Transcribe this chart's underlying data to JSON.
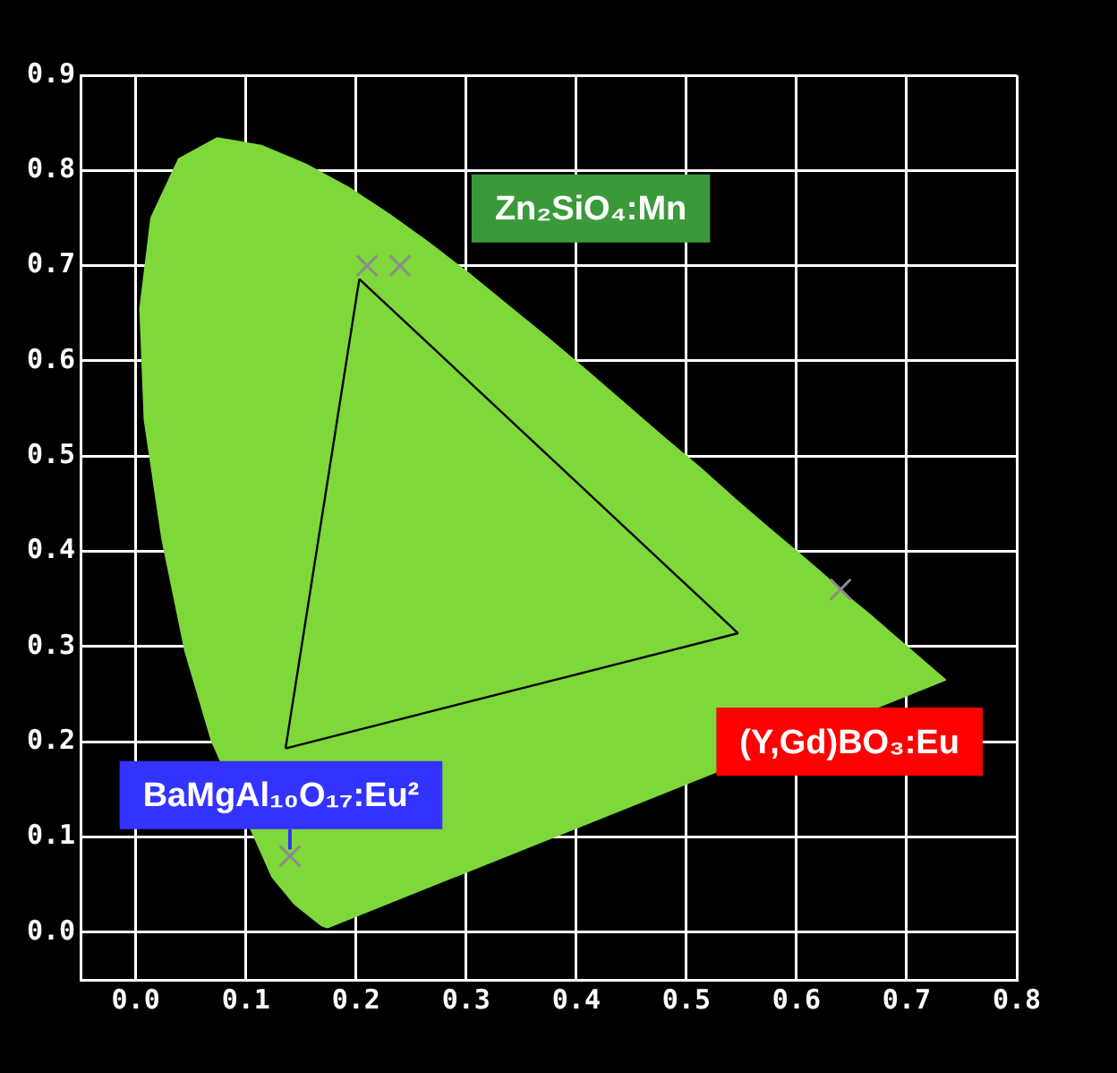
{
  "chart_data": {
    "type": "line",
    "xlim": [
      -0.05,
      0.8
    ],
    "ylim": [
      -0.05,
      0.9
    ],
    "xticks": [
      {
        "value": 0,
        "label": "0.0"
      },
      {
        "value": 0.1,
        "label": "0.1"
      },
      {
        "value": 0.2,
        "label": "0.2"
      },
      {
        "value": 0.3,
        "label": "0.3"
      },
      {
        "value": 0.4,
        "label": "0.4"
      },
      {
        "value": 0.5,
        "label": "0.5"
      },
      {
        "value": 0.6,
        "label": "0.6"
      },
      {
        "value": 0.7,
        "label": "0.7"
      },
      {
        "value": 0.8,
        "label": "0.8"
      }
    ],
    "yticks": [
      {
        "value": 0,
        "label": "0.0"
      },
      {
        "value": 0.1,
        "label": "0.1"
      },
      {
        "value": 0.2,
        "label": "0.2"
      },
      {
        "value": 0.3,
        "label": "0.3"
      },
      {
        "value": 0.4,
        "label": "0.4"
      },
      {
        "value": 0.5,
        "label": "0.5"
      },
      {
        "value": 0.6,
        "label": "0.6"
      },
      {
        "value": 0.7,
        "label": "0.7"
      },
      {
        "value": 0.8,
        "label": "0.8"
      },
      {
        "value": 0.9,
        "label": "0.9"
      }
    ],
    "grid": true,
    "legend": false,
    "series": [
      {
        "type": "area",
        "color": "#7fd83a",
        "x": [
          0.174,
          0.169,
          0.157,
          0.144,
          0.124,
          0.069,
          0.045,
          0.024,
          0.008,
          0.004,
          0.014,
          0.039,
          0.074,
          0.114,
          0.155,
          0.193,
          0.23,
          0.266,
          0.302,
          0.337,
          0.373,
          0.409,
          0.444,
          0.479,
          0.513,
          0.545,
          0.575,
          0.603,
          0.627,
          0.648,
          0.666,
          0.692,
          0.735,
          0.174
        ],
        "values": [
          0.005,
          0.007,
          0.018,
          0.03,
          0.058,
          0.201,
          0.295,
          0.413,
          0.538,
          0.655,
          0.75,
          0.812,
          0.834,
          0.826,
          0.806,
          0.782,
          0.754,
          0.724,
          0.692,
          0.659,
          0.625,
          0.59,
          0.555,
          0.52,
          0.487,
          0.454,
          0.424,
          0.397,
          0.373,
          0.351,
          0.334,
          0.308,
          0.265,
          0.005
        ]
      },
      {
        "color": "#000000",
        "x": [
          0.203,
          0.547
        ],
        "values": [
          0.686,
          0.314
        ]
      },
      {
        "color": "#000000",
        "x": [
          0.136,
          0.547
        ],
        "values": [
          0.193,
          0.314
        ]
      },
      {
        "color": "#000000",
        "x": [
          0.136,
          0.203
        ],
        "values": [
          0.193,
          0.686
        ]
      },
      {
        "type": "scatter",
        "color": "#8c8c8c",
        "marker": "cross",
        "x": [
          0.21,
          0.24,
          0.64,
          0.14
        ],
        "values": [
          0.7,
          0.7,
          0.36,
          0.08
        ]
      }
    ],
    "annotations": [
      "Zn₂SiO₄:Mn",
      "(Y,Gd)BO₃:Eu",
      {
        "text": "BaMgAl₁₀O₁₇:Eu²",
        "x": 0.14,
        "y": 0.08
      }
    ]
  }
}
